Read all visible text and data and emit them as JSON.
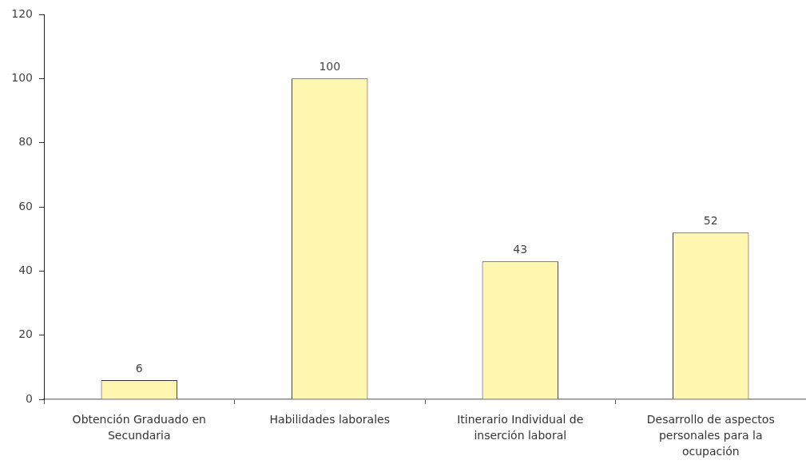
{
  "chart_data": {
    "type": "bar",
    "categories": [
      "Obtención Graduado en Secundaria",
      "Habilidades laborales",
      "Itinerario Individual de inserción laboral",
      "Desarrollo de aspectos personales para la ocupación"
    ],
    "values": [
      6,
      100,
      43,
      52
    ],
    "color": "#fff7b0",
    "ylim": [
      0,
      120
    ],
    "yticks": [
      0,
      20,
      40,
      60,
      80,
      100,
      120
    ],
    "data_labels": true
  }
}
